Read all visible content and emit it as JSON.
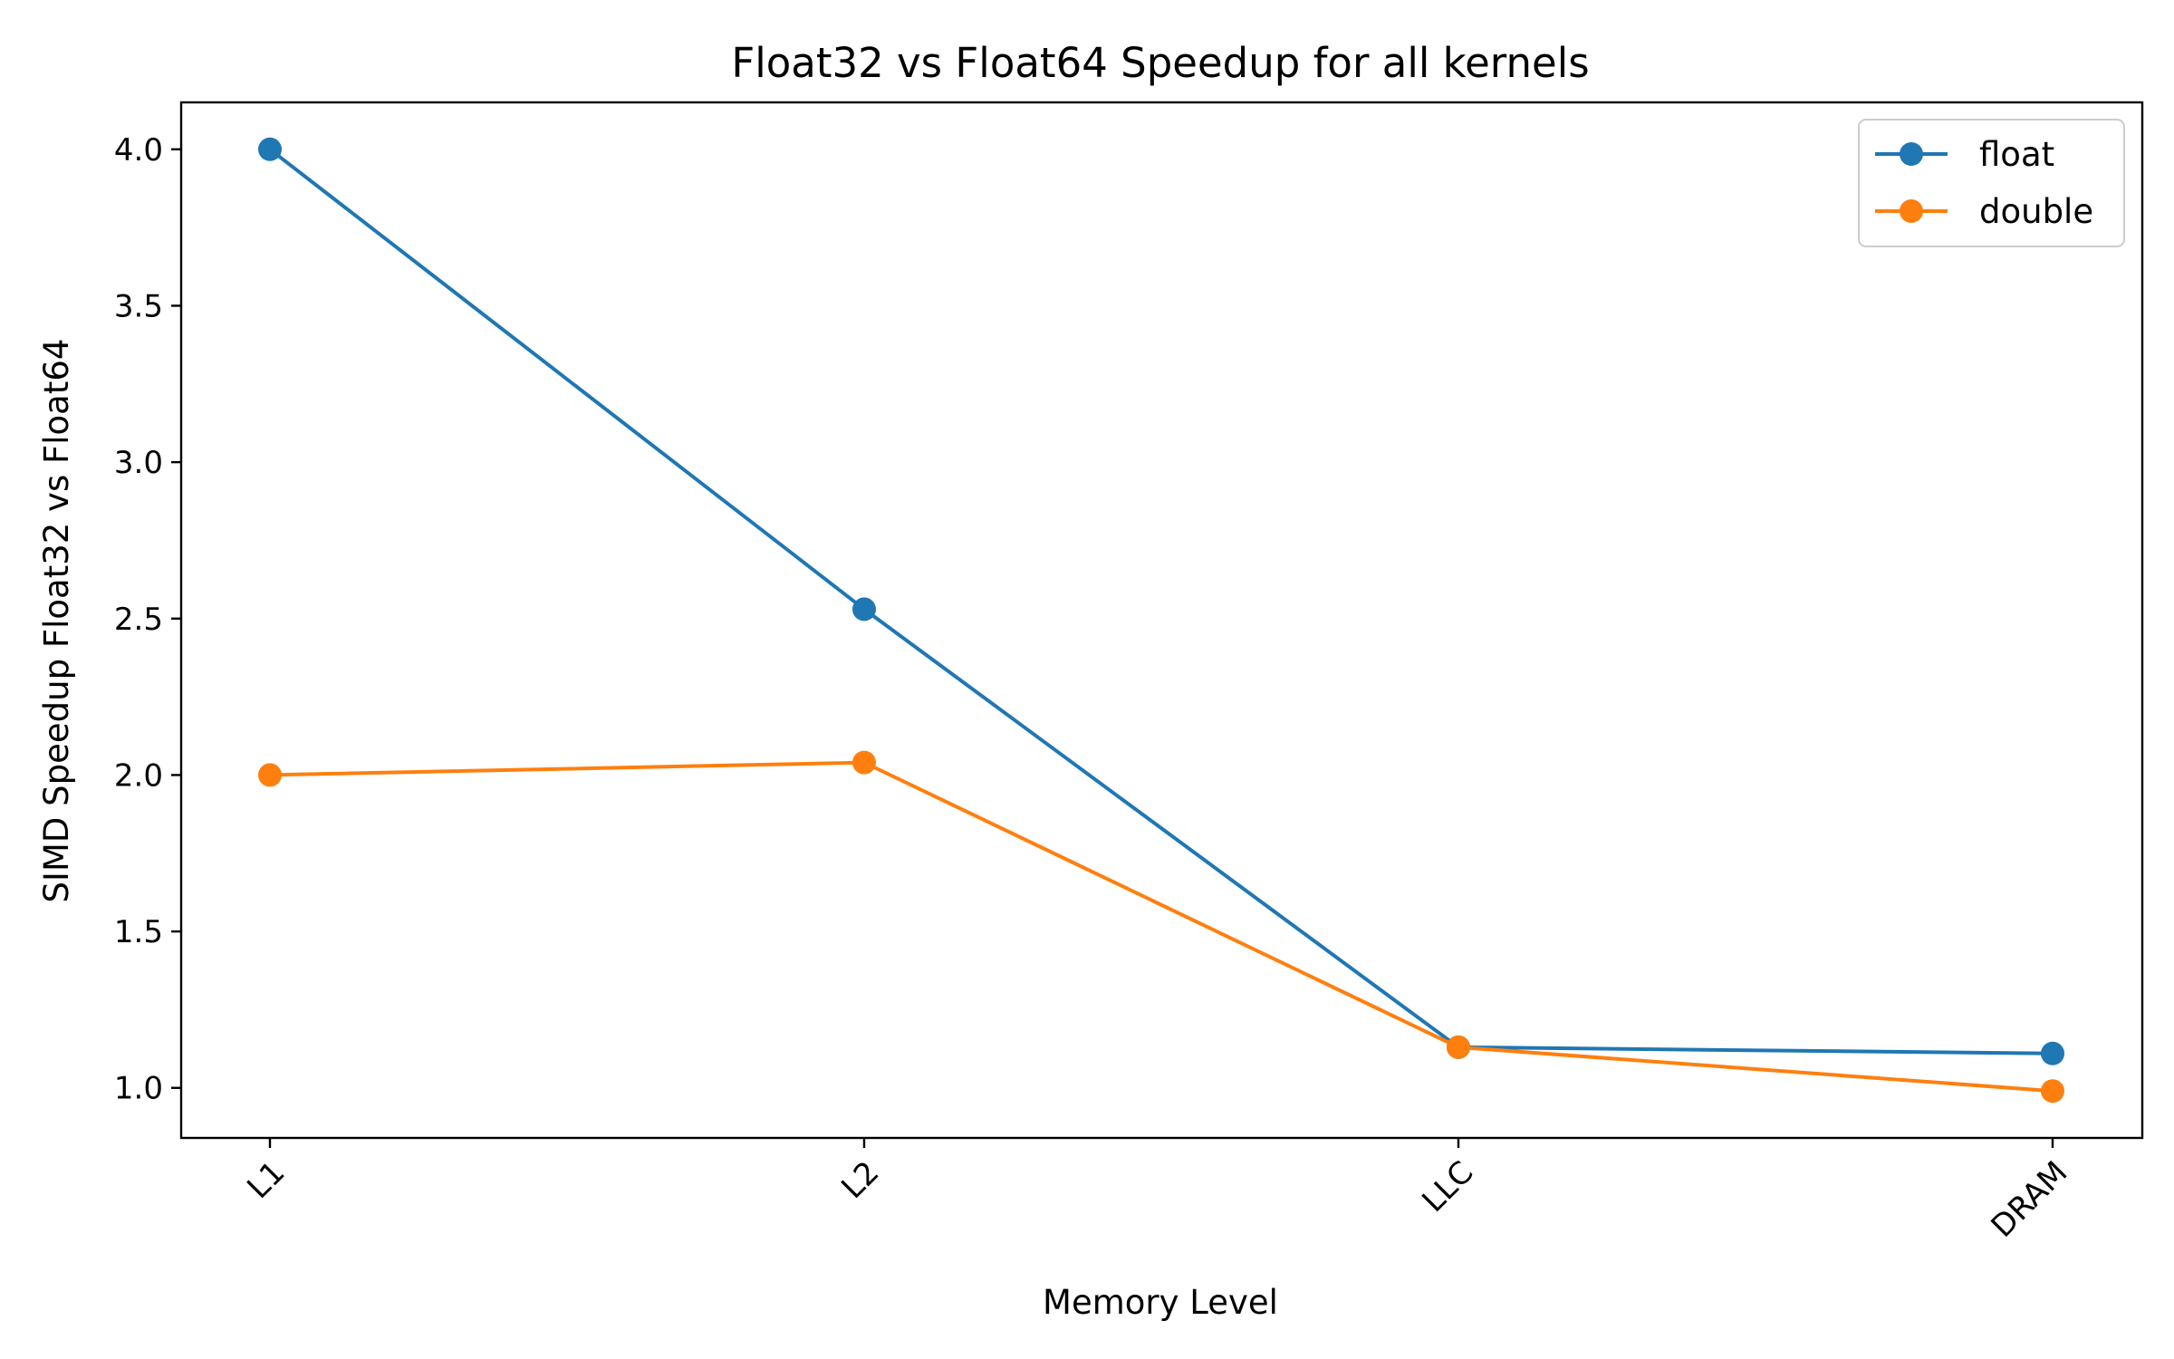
{
  "chart_data": {
    "type": "line",
    "title": "Float32 vs Float64 Speedup for all kernels",
    "xlabel": "Memory Level",
    "ylabel": "SIMD Speedup Float32 vs Float64",
    "categories": [
      "L1",
      "L2",
      "LLC",
      "DRAM"
    ],
    "ylim": [
      0.84,
      4.15
    ],
    "yticks": [
      "1.0",
      "1.5",
      "2.0",
      "2.5",
      "3.0",
      "3.5",
      "4.0"
    ],
    "grid": false,
    "legend_position": "top-right",
    "series": [
      {
        "name": "float",
        "color": "#1f77b4",
        "values": [
          4.0,
          2.53,
          1.13,
          1.11
        ]
      },
      {
        "name": "double",
        "color": "#ff7f0e",
        "values": [
          2.0,
          2.04,
          1.13,
          0.99
        ]
      }
    ]
  }
}
